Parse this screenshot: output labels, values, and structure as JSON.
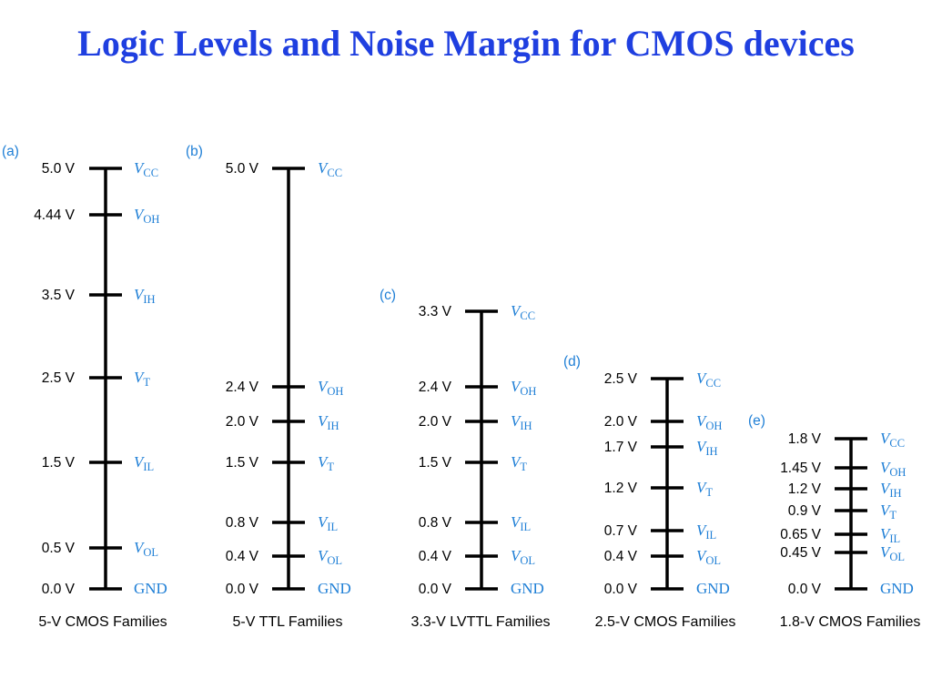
{
  "title": "Logic Levels and Noise Margin for CMOS devices",
  "colors": {
    "title": "#1f3fe0",
    "signal": "#1f7fd6",
    "axis": "#000000"
  },
  "panels": [
    {
      "tag": "(a)",
      "family": "5-V CMOS Families",
      "levels": [
        {
          "volt": "5.0 V",
          "name": "V",
          "sub": "CC"
        },
        {
          "volt": "4.44 V",
          "name": "V",
          "sub": "OH"
        },
        {
          "volt": "3.5 V",
          "name": "V",
          "sub": "IH"
        },
        {
          "volt": "2.5 V",
          "name": "V",
          "sub": "T"
        },
        {
          "volt": "1.5 V",
          "name": "V",
          "sub": "IL"
        },
        {
          "volt": "0.5 V",
          "name": "V",
          "sub": "OL"
        },
        {
          "volt": "0.0 V",
          "name": "GND",
          "sub": ""
        }
      ]
    },
    {
      "tag": "(b)",
      "family": "5-V TTL Families",
      "levels": [
        {
          "volt": "5.0 V",
          "name": "V",
          "sub": "CC"
        },
        {
          "volt": "2.4 V",
          "name": "V",
          "sub": "OH"
        },
        {
          "volt": "2.0 V",
          "name": "V",
          "sub": "IH"
        },
        {
          "volt": "1.5 V",
          "name": "V",
          "sub": "T"
        },
        {
          "volt": "0.8 V",
          "name": "V",
          "sub": "IL"
        },
        {
          "volt": "0.4 V",
          "name": "V",
          "sub": "OL"
        },
        {
          "volt": "0.0 V",
          "name": "GND",
          "sub": ""
        }
      ]
    },
    {
      "tag": "(c)",
      "family": "3.3-V LVTTL Families",
      "levels": [
        {
          "volt": "3.3 V",
          "name": "V",
          "sub": "CC"
        },
        {
          "volt": "2.4 V",
          "name": "V",
          "sub": "OH"
        },
        {
          "volt": "2.0 V",
          "name": "V",
          "sub": "IH"
        },
        {
          "volt": "1.5 V",
          "name": "V",
          "sub": "T"
        },
        {
          "volt": "0.8 V",
          "name": "V",
          "sub": "IL"
        },
        {
          "volt": "0.4 V",
          "name": "V",
          "sub": "OL"
        },
        {
          "volt": "0.0 V",
          "name": "GND",
          "sub": ""
        }
      ]
    },
    {
      "tag": "(d)",
      "family": "2.5-V CMOS Families",
      "levels": [
        {
          "volt": "2.5 V",
          "name": "V",
          "sub": "CC"
        },
        {
          "volt": "2.0 V",
          "name": "V",
          "sub": "OH"
        },
        {
          "volt": "1.7 V",
          "name": "V",
          "sub": "IH"
        },
        {
          "volt": "1.2 V",
          "name": "V",
          "sub": "T"
        },
        {
          "volt": "0.7 V",
          "name": "V",
          "sub": "IL"
        },
        {
          "volt": "0.4 V",
          "name": "V",
          "sub": "OL"
        },
        {
          "volt": "0.0 V",
          "name": "GND",
          "sub": ""
        }
      ]
    },
    {
      "tag": "(e)",
      "family": "1.8-V CMOS Families",
      "levels": [
        {
          "volt": "1.8 V",
          "name": "V",
          "sub": "CC"
        },
        {
          "volt": "1.45 V",
          "name": "V",
          "sub": "OH"
        },
        {
          "volt": "1.2 V",
          "name": "V",
          "sub": "IH"
        },
        {
          "volt": "0.9 V",
          "name": "V",
          "sub": "T"
        },
        {
          "volt": "0.65 V",
          "name": "V",
          "sub": "IL"
        },
        {
          "volt": "0.45 V",
          "name": "V",
          "sub": "OL"
        },
        {
          "volt": "0.0 V",
          "name": "GND",
          "sub": ""
        }
      ]
    }
  ]
}
